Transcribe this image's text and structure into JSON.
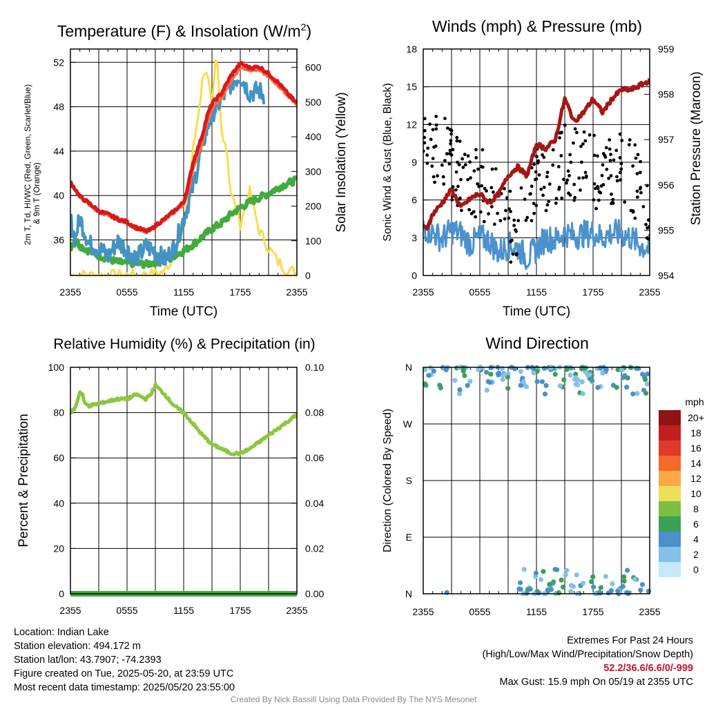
{
  "x_ticks": [
    "2355",
    "0555",
    "1155",
    "1755",
    "2355"
  ],
  "chart_data": [
    {
      "type": "line",
      "title": "Temperature (F) & Insolation (W/m²)",
      "xlabel": "Time (UTC)",
      "ylabel_left": "2m T, Td, HI/WC (Red, Green, Scarlet/Blue) & 9m T (Orange)",
      "ylabel_right": "Solar Insolation (Yellow)",
      "x_range_hours": [
        0,
        24
      ],
      "y_left_ticks": [
        36,
        40,
        44,
        48,
        52
      ],
      "y_left_range": [
        32.8,
        53.2
      ],
      "y_right_ticks": [
        0,
        100,
        200,
        300,
        400,
        500,
        600
      ],
      "y_right_range": [
        0,
        653
      ],
      "series": [
        {
          "label": "2m T",
          "color": "#d7191c",
          "axis": "left",
          "x": [
            0,
            0.5,
            1,
            2,
            3,
            4,
            5,
            6,
            7,
            8,
            8.5,
            9,
            10,
            11,
            12,
            12.5,
            13,
            14,
            14.5,
            15,
            16,
            17,
            18,
            19,
            20,
            21,
            22,
            23,
            24
          ],
          "y": [
            41.2,
            40.6,
            39.9,
            39.3,
            38.6,
            38.3,
            37.9,
            37.6,
            37.1,
            36.8,
            36.9,
            37.3,
            37.9,
            38.6,
            39.4,
            41.0,
            43.0,
            45.5,
            47.2,
            48.3,
            49.2,
            50.8,
            51.9,
            51.5,
            51.6,
            51.0,
            50.2,
            49.2,
            48.3
          ]
        },
        {
          "label": "9m T",
          "color": "#f46d43",
          "axis": "left",
          "x": [
            0,
            1,
            2,
            3,
            4,
            5,
            6,
            7,
            8,
            9,
            10,
            11,
            12,
            12.5,
            13,
            14,
            14.5,
            15,
            16,
            17,
            18,
            19,
            20,
            21,
            22,
            23,
            24
          ],
          "y": [
            41.1,
            39.8,
            39.2,
            38.5,
            38.2,
            37.8,
            37.5,
            37.0,
            36.7,
            37.2,
            37.8,
            38.5,
            39.2,
            40.3,
            42.4,
            44.8,
            46.6,
            47.8,
            48.8,
            50.3,
            51.5,
            51.3,
            51.3,
            50.7,
            49.9,
            49.0,
            48.2
          ]
        },
        {
          "label": "HI/WC",
          "color": "#4393c3",
          "axis": "left",
          "x": [
            0,
            0.5,
            1,
            2,
            3,
            4,
            5,
            6,
            7,
            8,
            9,
            10,
            11,
            12,
            13,
            14,
            15,
            16,
            17,
            18,
            19,
            20,
            20.5
          ],
          "y": [
            37.8,
            36.1,
            38.0,
            35.6,
            35.3,
            34.5,
            35.9,
            35.1,
            34.3,
            35.4,
            35.0,
            34.2,
            35.3,
            37.9,
            40.8,
            44.6,
            47.4,
            48.6,
            50.1,
            50.8,
            49.2,
            49.5,
            49.0
          ]
        },
        {
          "label": "Td",
          "color": "#41ab3c",
          "axis": "left",
          "x": [
            0,
            0.5,
            1,
            2,
            3,
            4,
            5,
            6,
            7,
            8,
            9,
            10,
            11,
            12,
            13,
            14,
            15,
            16,
            17,
            18,
            19,
            20,
            21,
            22,
            23,
            24
          ],
          "y": [
            35.3,
            36.1,
            35.5,
            35.0,
            34.6,
            34.3,
            34.0,
            33.9,
            33.9,
            33.8,
            34.0,
            34.3,
            34.6,
            35.0,
            35.6,
            36.3,
            37.0,
            37.5,
            38.3,
            38.9,
            39.4,
            39.8,
            40.2,
            40.7,
            41.1,
            41.4
          ]
        },
        {
          "label": "Solar Insolation",
          "color": "#fadc4b",
          "axis": "right",
          "x": [
            0,
            8,
            9,
            10,
            11,
            12,
            12.5,
            13,
            13.5,
            14,
            14.3,
            14.6,
            15,
            15.5,
            16,
            16.5,
            17,
            18,
            19,
            20,
            21,
            22,
            23,
            24
          ],
          "y": [
            0,
            0,
            3,
            12,
            60,
            140,
            240,
            360,
            460,
            560,
            610,
            560,
            480,
            640,
            420,
            380,
            240,
            150,
            240,
            130,
            80,
            40,
            15,
            10
          ]
        }
      ]
    },
    {
      "type": "line+scatter",
      "title": "Winds (mph) & Pressure (mb)",
      "xlabel": "Time (UTC)",
      "ylabel_left": "Sonic Wind & Gust (Blue, Black)",
      "ylabel_right": "Station Pressure (Maroon)",
      "x_range_hours": [
        0,
        24
      ],
      "y_left_ticks": [
        0,
        3,
        6,
        9,
        12,
        15,
        18
      ],
      "y_left_range": [
        0,
        18
      ],
      "y_right_ticks": [
        954,
        955,
        956,
        957,
        958,
        959
      ],
      "y_right_range": [
        954,
        959
      ],
      "series": [
        {
          "label": "Sonic Wind",
          "color": "#4b92cc",
          "axis": "left",
          "x": [
            0,
            1,
            2,
            3,
            4,
            5,
            6,
            7,
            8,
            9,
            10,
            11,
            12,
            13,
            14,
            15,
            16,
            17,
            18,
            19,
            20,
            21,
            22,
            23,
            24
          ],
          "y": [
            3.8,
            3.4,
            2.9,
            3.6,
            3.3,
            2.5,
            3.0,
            2.8,
            1.8,
            2.4,
            2.2,
            1.4,
            2.1,
            3.0,
            2.8,
            3.4,
            3.1,
            3.3,
            3.4,
            3.0,
            3.4,
            3.3,
            3.0,
            2.4,
            2.1
          ]
        },
        {
          "label": "Station Pressure",
          "color": "#a51616",
          "axis": "right",
          "x": [
            0,
            0.4,
            1,
            2,
            3,
            4,
            5,
            6,
            7,
            8,
            9,
            10,
            10.5,
            11,
            12,
            13,
            14,
            15,
            16,
            17,
            18,
            19,
            20,
            21,
            22,
            23,
            24
          ],
          "y": [
            955.05,
            955.05,
            955.35,
            955.6,
            955.9,
            955.5,
            955.7,
            955.8,
            955.6,
            955.8,
            956.2,
            956.4,
            956.3,
            956.2,
            956.9,
            956.8,
            957.0,
            957.9,
            957.4,
            957.6,
            957.9,
            957.6,
            957.9,
            958.1,
            958.1,
            958.2,
            958.3
          ]
        }
      ]
    },
    {
      "type": "line",
      "title": "Relative Humidity (%) & Precipitation (in)",
      "xlabel": "",
      "ylabel_left": "Percent & Precipitation",
      "ylabel_right": "",
      "x_range_hours": [
        0,
        24
      ],
      "y_left_ticks": [
        0,
        20,
        40,
        60,
        80,
        100
      ],
      "y_left_range": [
        0,
        100
      ],
      "y_right_ticks": [
        "0.00",
        "0.02",
        "0.04",
        "0.06",
        "0.08",
        "0.10"
      ],
      "y_right_range": [
        0,
        0.1
      ],
      "series": [
        {
          "label": "Relative Humidity",
          "color": "#8dc63f",
          "axis": "left",
          "x": [
            0,
            0.5,
            1,
            1.3,
            1.5,
            2,
            3,
            4,
            5,
            6,
            7,
            8,
            8.5,
            9,
            9.5,
            10,
            11,
            12,
            13,
            14,
            15,
            16,
            17,
            18,
            19,
            20,
            21,
            22,
            23,
            24
          ],
          "y": [
            80,
            82,
            89,
            88,
            84,
            83,
            84,
            85,
            86,
            86,
            88,
            86,
            88,
            92,
            90,
            88,
            83,
            80,
            75,
            70,
            66,
            64,
            62,
            62,
            64,
            67,
            70,
            73,
            76,
            79
          ]
        },
        {
          "label": "Precipitation",
          "color": "#41ab3c",
          "axis": "left",
          "x": [
            0,
            24
          ],
          "y": [
            0,
            0
          ]
        }
      ]
    },
    {
      "type": "scatter",
      "title": "Wind Direction",
      "ylabel": "Direction (Colored By Speed)",
      "x_range_hours": [
        0,
        24
      ],
      "y_labels": [
        "N",
        "E",
        "S",
        "W",
        "N"
      ],
      "y_range_deg": [
        0,
        360
      ],
      "colorbar": {
        "title": "mph",
        "labels": [
          "0",
          "2",
          "4",
          "6",
          "8",
          "10",
          "12",
          "14",
          "16",
          "18",
          "20+"
        ],
        "colors": [
          "#c6e9fb",
          "#85c0e8",
          "#4a90c9",
          "#3aa055",
          "#7bc043",
          "#ede05b",
          "#fba946",
          "#f46a2b",
          "#e03929",
          "#c21f1f",
          "#8f1414"
        ]
      }
    }
  ],
  "info_left": [
    "Location: Indian Lake",
    "Station elevation: 494.172 m",
    "Station lat/lon: 43.7907; -74.2393",
    "Figure created on Tue, 2025-05-20, at 23:59 UTC",
    "Most recent data timestamp: 2025/05/20 23:55:00"
  ],
  "extremes": {
    "title": "Extremes For Past 24 Hours",
    "subtitle": "(High/Low/Max Wind/Precipitation/Snow Depth)",
    "values": "52.2/36.6/6.6/0/-999",
    "max_gust": "Max Gust: 15.9 mph On 05/19 at 2355 UTC"
  },
  "credit": "Created By Nick Bassill Using Data Provided By The NYS Mesonet"
}
